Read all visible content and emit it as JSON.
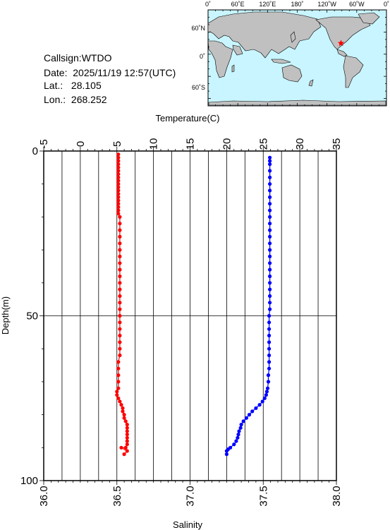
{
  "station": {
    "callsign_label": "Callsign:",
    "callsign": "WTDO",
    "date_label": "Date:",
    "date": "2025/11/19 12:57(UTC)",
    "lat_label": "Lat.:",
    "lat": "28.105",
    "lon_label": "Lon.:",
    "lon": "268.252"
  },
  "map": {
    "lon_labels": [
      "0˚",
      "60˚E",
      "120˚E",
      "180˚",
      "120˚W",
      "60˚W",
      "0˚"
    ],
    "lat_labels": [
      "60˚N",
      "0˚",
      "60˚S"
    ],
    "land_color": "#c0c0c0",
    "ocean_color": "#c8f5ff",
    "marker": "star-icon",
    "marker_color": "#ff0000"
  },
  "chart_data": {
    "type": "line",
    "y_label": "Depth(m)",
    "y_range": [
      0,
      100
    ],
    "y_ticks": [
      0,
      50,
      100
    ],
    "top_axis": {
      "label": "Temperature(C)",
      "range": [
        -5,
        35
      ],
      "ticks": [
        -5,
        0,
        5,
        10,
        15,
        20,
        25,
        30,
        35
      ]
    },
    "bottom_axis": {
      "label": "Salinity",
      "range": [
        36.0,
        38.0
      ],
      "ticks": [
        "36.0",
        "36.5",
        "37.0",
        "37.5",
        "38.0"
      ]
    },
    "grid": true,
    "series": [
      {
        "color": "#ff0000",
        "axis": "bottom",
        "points": [
          [
            36.51,
            1
          ],
          [
            36.51,
            2
          ],
          [
            36.51,
            3
          ],
          [
            36.51,
            4
          ],
          [
            36.51,
            5
          ],
          [
            36.51,
            6
          ],
          [
            36.51,
            7
          ],
          [
            36.51,
            8
          ],
          [
            36.51,
            9
          ],
          [
            36.51,
            10
          ],
          [
            36.51,
            11
          ],
          [
            36.51,
            12
          ],
          [
            36.51,
            13
          ],
          [
            36.51,
            14
          ],
          [
            36.51,
            15
          ],
          [
            36.51,
            16
          ],
          [
            36.51,
            17
          ],
          [
            36.51,
            18
          ],
          [
            36.51,
            19
          ],
          [
            36.52,
            20
          ],
          [
            36.52,
            22
          ],
          [
            36.52,
            24
          ],
          [
            36.52,
            26
          ],
          [
            36.52,
            28
          ],
          [
            36.52,
            30
          ],
          [
            36.52,
            32
          ],
          [
            36.52,
            34
          ],
          [
            36.52,
            36
          ],
          [
            36.52,
            38
          ],
          [
            36.52,
            40
          ],
          [
            36.52,
            42
          ],
          [
            36.52,
            44
          ],
          [
            36.52,
            46
          ],
          [
            36.52,
            48
          ],
          [
            36.52,
            50
          ],
          [
            36.52,
            52
          ],
          [
            36.52,
            54
          ],
          [
            36.52,
            56
          ],
          [
            36.52,
            58
          ],
          [
            36.52,
            60
          ],
          [
            36.52,
            62
          ],
          [
            36.51,
            64
          ],
          [
            36.51,
            66
          ],
          [
            36.51,
            68
          ],
          [
            36.51,
            70
          ],
          [
            36.51,
            72
          ],
          [
            36.5,
            73
          ],
          [
            36.5,
            74
          ],
          [
            36.51,
            75
          ],
          [
            36.52,
            76
          ],
          [
            36.53,
            77
          ],
          [
            36.54,
            78
          ],
          [
            36.54,
            79
          ],
          [
            36.55,
            80
          ],
          [
            36.55,
            81
          ],
          [
            36.56,
            82
          ],
          [
            36.57,
            83
          ],
          [
            36.57,
            84
          ],
          [
            36.57,
            85
          ],
          [
            36.57,
            86
          ],
          [
            36.57,
            87
          ],
          [
            36.57,
            88
          ],
          [
            36.57,
            89
          ],
          [
            36.56,
            90
          ],
          [
            36.53,
            90
          ],
          [
            36.57,
            91
          ],
          [
            36.55,
            92
          ]
        ]
      },
      {
        "color": "#0000ff",
        "axis": "top",
        "points": [
          [
            25.9,
            2
          ],
          [
            25.9,
            3
          ],
          [
            25.9,
            4
          ],
          [
            25.9,
            6
          ],
          [
            25.9,
            8
          ],
          [
            25.9,
            10
          ],
          [
            25.9,
            12
          ],
          [
            25.9,
            14
          ],
          [
            25.9,
            16
          ],
          [
            25.9,
            18
          ],
          [
            25.9,
            20
          ],
          [
            25.9,
            22
          ],
          [
            25.9,
            24
          ],
          [
            25.9,
            26
          ],
          [
            25.9,
            28
          ],
          [
            25.9,
            30
          ],
          [
            25.9,
            32
          ],
          [
            25.9,
            34
          ],
          [
            25.9,
            36
          ],
          [
            25.9,
            38
          ],
          [
            25.9,
            40
          ],
          [
            25.9,
            42
          ],
          [
            25.9,
            44
          ],
          [
            25.9,
            46
          ],
          [
            25.9,
            48
          ],
          [
            25.8,
            50
          ],
          [
            25.8,
            52
          ],
          [
            25.8,
            54
          ],
          [
            25.8,
            56
          ],
          [
            25.8,
            58
          ],
          [
            25.8,
            60
          ],
          [
            25.8,
            62
          ],
          [
            25.8,
            64
          ],
          [
            25.8,
            66
          ],
          [
            25.7,
            68
          ],
          [
            25.7,
            70
          ],
          [
            25.6,
            72
          ],
          [
            25.5,
            73
          ],
          [
            25.4,
            74
          ],
          [
            25.2,
            75
          ],
          [
            24.9,
            76
          ],
          [
            24.5,
            77
          ],
          [
            24.0,
            78
          ],
          [
            23.5,
            79
          ],
          [
            23.1,
            80
          ],
          [
            22.7,
            81
          ],
          [
            22.3,
            82
          ],
          [
            22.0,
            83
          ],
          [
            21.9,
            84
          ],
          [
            21.7,
            85
          ],
          [
            21.6,
            86
          ],
          [
            21.5,
            87
          ],
          [
            21.3,
            88
          ],
          [
            21.0,
            89
          ],
          [
            20.5,
            90
          ],
          [
            20.2,
            90.5
          ],
          [
            20.0,
            91
          ],
          [
            20.0,
            92
          ]
        ]
      }
    ]
  }
}
